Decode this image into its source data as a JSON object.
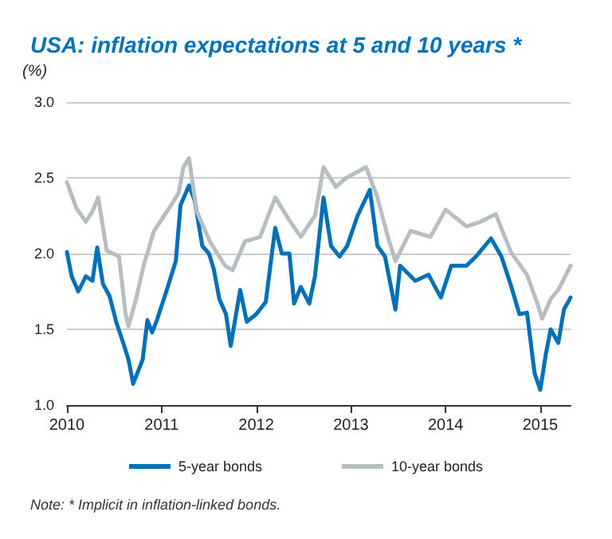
{
  "chart_data": {
    "type": "line",
    "title": "USA: inflation expectations at 5 and 10 years *",
    "ylabel": "(%)",
    "annotations": [
      "Note: * Implicit in inflation-linked bonds."
    ],
    "xlim": [
      2010,
      2015.32
    ],
    "xticks": [
      2010,
      2011,
      2012,
      2013,
      2014,
      2015
    ],
    "ylim": [
      1,
      3
    ],
    "yticks": [
      {
        "value": 1,
        "label": "1.0"
      },
      1.5,
      {
        "value": 2,
        "label": "2.0"
      },
      2.5,
      {
        "value": 3,
        "label": "3.0"
      }
    ],
    "grid": "y",
    "legend": "bottom",
    "marker": "none",
    "line_style": "solid",
    "series": [
      {
        "name": "5-year bonds",
        "color": "#0070b8",
        "x": [
          2010.0,
          2010.05,
          2010.12,
          2010.2,
          2010.27,
          2010.32,
          2010.38,
          2010.45,
          2010.52,
          2010.6,
          2010.65,
          2010.7,
          2010.75,
          2010.8,
          2010.85,
          2010.9,
          2010.95,
          2011.05,
          2011.15,
          2011.2,
          2011.29,
          2011.35,
          2011.43,
          2011.5,
          2011.55,
          2011.61,
          2011.68,
          2011.73,
          2011.8,
          2011.83,
          2011.9,
          2012.0,
          2012.1,
          2012.2,
          2012.27,
          2012.35,
          2012.4,
          2012.47,
          2012.56,
          2012.62,
          2012.71,
          2012.79,
          2012.88,
          2012.96,
          2013.07,
          2013.2,
          2013.28,
          2013.36,
          2013.47,
          2013.52,
          2013.68,
          2013.82,
          2013.95,
          2014.06,
          2014.22,
          2014.32,
          2014.48,
          2014.59,
          2014.69,
          2014.78,
          2014.86,
          2014.94,
          2015.0,
          2015.06,
          2015.11,
          2015.19,
          2015.25,
          2015.32
        ],
        "values": [
          2.01,
          1.85,
          1.75,
          1.85,
          1.82,
          2.04,
          1.8,
          1.72,
          1.55,
          1.4,
          1.3,
          1.14,
          1.22,
          1.3,
          1.56,
          1.48,
          1.56,
          1.75,
          1.95,
          2.32,
          2.45,
          2.35,
          2.05,
          2.0,
          1.9,
          1.7,
          1.6,
          1.39,
          1.65,
          1.76,
          1.55,
          1.6,
          1.68,
          2.17,
          2.0,
          2.0,
          1.67,
          1.78,
          1.67,
          1.85,
          2.37,
          2.05,
          1.98,
          2.05,
          2.25,
          2.42,
          2.05,
          1.98,
          1.63,
          1.92,
          1.82,
          1.86,
          1.71,
          1.92,
          1.92,
          1.98,
          2.1,
          1.98,
          1.79,
          1.6,
          1.61,
          1.21,
          1.1,
          1.34,
          1.5,
          1.41,
          1.63,
          1.71
        ]
      },
      {
        "name": "10-year bonds",
        "color": "#b6bec2",
        "x": [
          2010.0,
          2010.1,
          2010.2,
          2010.27,
          2010.33,
          2010.42,
          2010.55,
          2010.62,
          2010.65,
          2010.73,
          2010.81,
          2010.92,
          2011.08,
          2011.18,
          2011.23,
          2011.29,
          2011.37,
          2011.51,
          2011.67,
          2011.75,
          2011.88,
          2012.04,
          2012.2,
          2012.36,
          2012.47,
          2012.62,
          2012.71,
          2012.84,
          2012.95,
          2013.16,
          2013.28,
          2013.39,
          2013.47,
          2013.63,
          2013.84,
          2014.0,
          2014.22,
          2014.37,
          2014.53,
          2014.69,
          2014.86,
          2014.97,
          2015.02,
          2015.11,
          2015.19,
          2015.32
        ],
        "values": [
          2.47,
          2.3,
          2.21,
          2.28,
          2.37,
          2.02,
          1.98,
          1.6,
          1.52,
          1.7,
          1.92,
          2.15,
          2.3,
          2.4,
          2.57,
          2.63,
          2.28,
          2.08,
          1.92,
          1.89,
          2.08,
          2.11,
          2.37,
          2.21,
          2.11,
          2.25,
          2.57,
          2.44,
          2.5,
          2.57,
          2.37,
          2.11,
          1.95,
          2.15,
          2.11,
          2.29,
          2.18,
          2.21,
          2.26,
          2.01,
          1.86,
          1.67,
          1.57,
          1.7,
          1.76,
          1.92
        ]
      }
    ]
  }
}
